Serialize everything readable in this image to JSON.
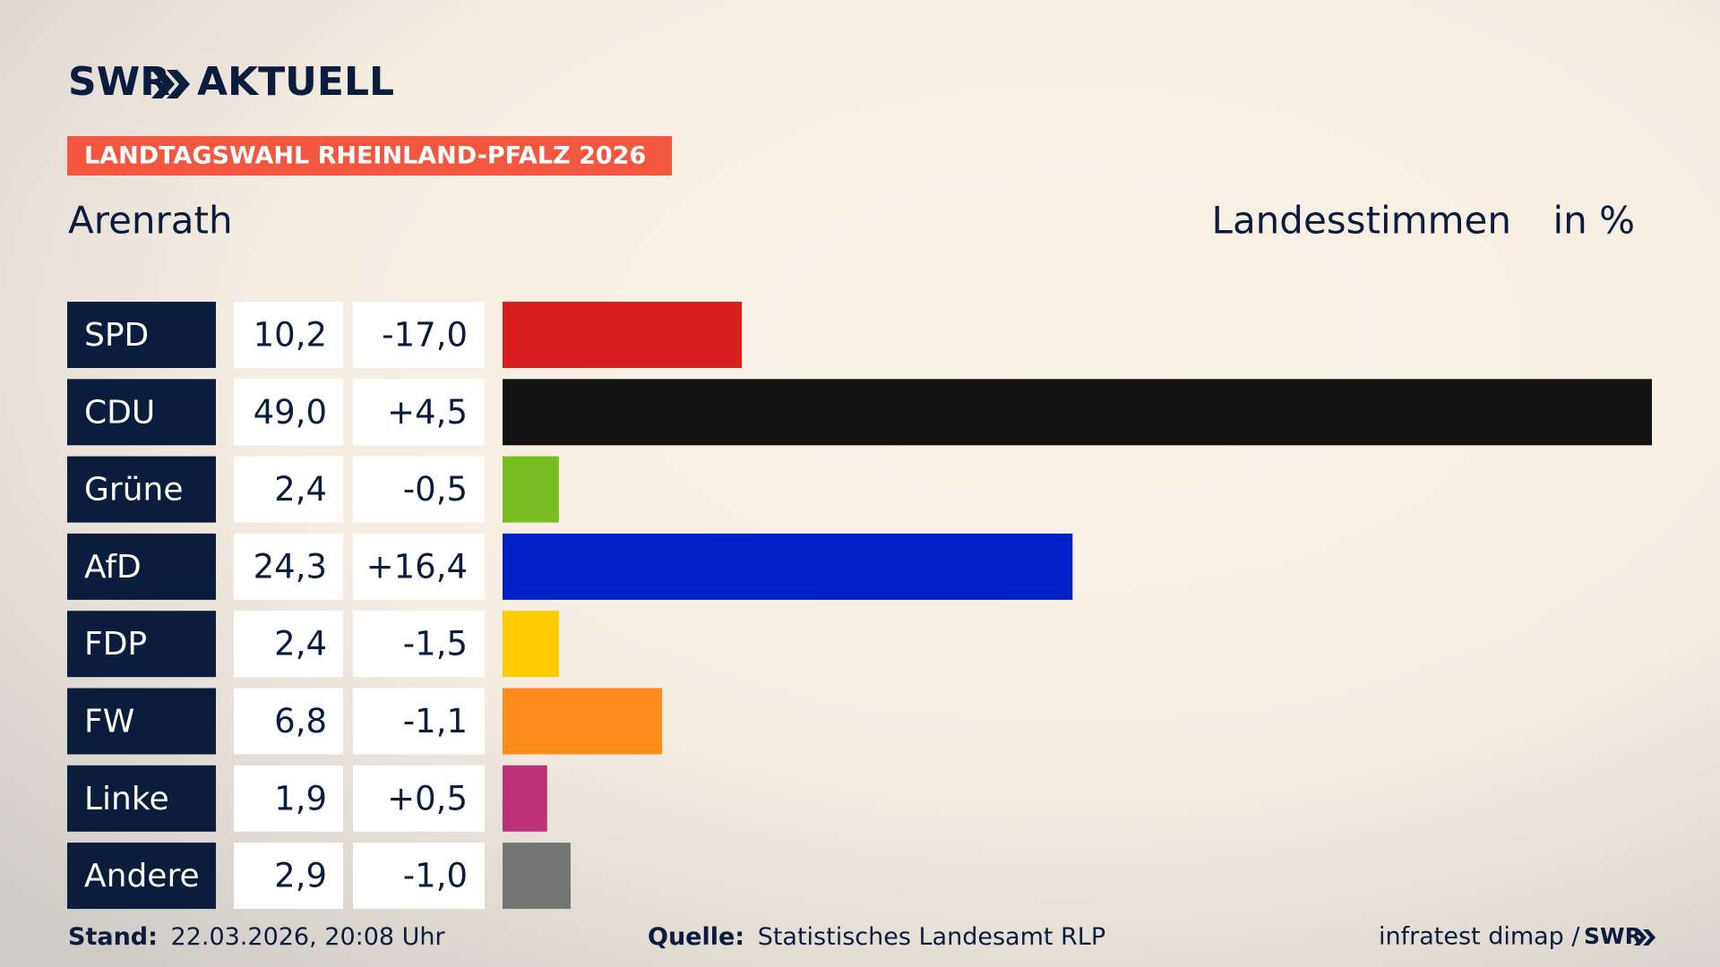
{
  "logo": {
    "brand": "SWR",
    "product": "AKTUELL"
  },
  "banner": "LANDTAGSWAHL RHEINLAND-PFALZ 2026",
  "chart_data": {
    "type": "bar",
    "orientation": "horizontal",
    "title": "Arenrath",
    "measure": "Landesstimmen",
    "unit": "in %",
    "categories": [
      "SPD",
      "CDU",
      "Grüne",
      "AfD",
      "FDP",
      "FW",
      "Linke",
      "Andere"
    ],
    "values": [
      10.2,
      49.0,
      2.4,
      24.3,
      2.4,
      6.8,
      1.9,
      2.9
    ],
    "value_labels": [
      "10,2",
      "49,0",
      "2,4",
      "24,3",
      "2,4",
      "6,8",
      "1,9",
      "2,9"
    ],
    "colors": [
      "#d71f1f",
      "#121212",
      "#78be20",
      "#0020c8",
      "#ffcc00",
      "#ff8c1a",
      "#be3075",
      "#757575"
    ],
    "change": {
      "values": [
        -17.0,
        4.5,
        -0.5,
        16.4,
        -1.5,
        -1.1,
        0.5,
        -1.0
      ],
      "value_labels": [
        "-17,0",
        "+4,5",
        "-0,5",
        "+16,4",
        "-1,5",
        "-1,1",
        "+0,5",
        "-1,0"
      ]
    },
    "xlim": [
      0,
      49
    ]
  },
  "footer": {
    "stand_label": "Stand:",
    "stand": "22.03.2026, 20:08 Uhr",
    "source_label": "Quelle:",
    "source": "Statistisches Landesamt RLP",
    "institute": "infratest dimap /",
    "brand": "SWR"
  }
}
